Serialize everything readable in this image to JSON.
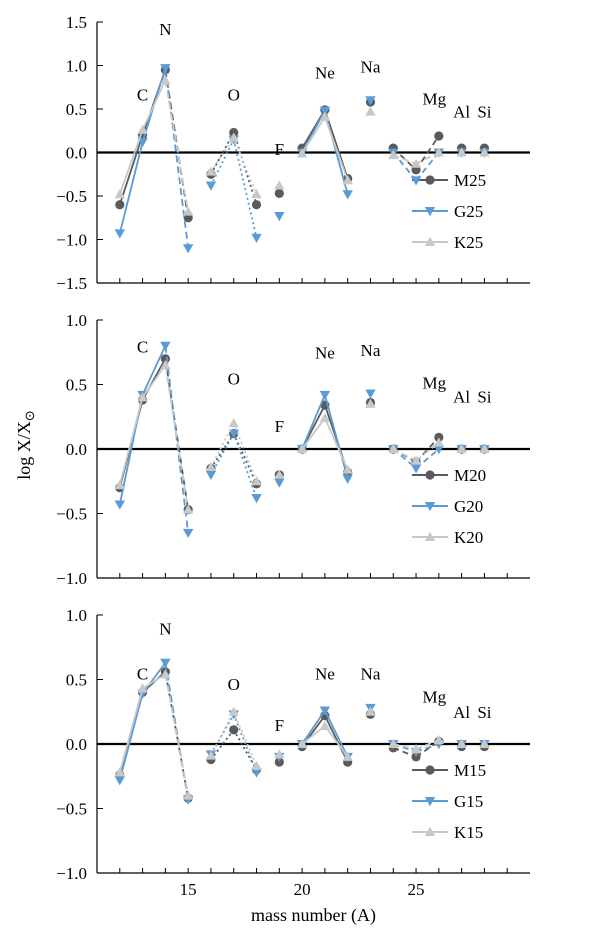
{
  "chart_data": [
    {
      "type": "line",
      "ylim": [
        -1.5,
        1.5
      ],
      "yticks": [
        "1.5",
        "1.0",
        "0.5",
        "0.0",
        "−0.5",
        "−1.0",
        "−1.5"
      ],
      "xlim": [
        11,
        30
      ],
      "element_labels": [
        {
          "text": "C",
          "x": 13,
          "y": 0.6
        },
        {
          "text": "N",
          "x": 14,
          "y": 1.35
        },
        {
          "text": "O",
          "x": 17,
          "y": 0.6
        },
        {
          "text": "F",
          "x": 19,
          "y": -0.03
        },
        {
          "text": "Ne",
          "x": 21,
          "y": 0.85
        },
        {
          "text": "Na",
          "x": 23,
          "y": 0.92
        },
        {
          "text": "Mg",
          "x": 25.8,
          "y": 0.55
        },
        {
          "text": "Al",
          "x": 27,
          "y": 0.4
        },
        {
          "text": "Si",
          "x": 28,
          "y": 0.4
        }
      ],
      "series": [
        {
          "name": "M25",
          "color": "#5a5a5a",
          "marker": "circle",
          "x": [
            12,
            13,
            14,
            15,
            16,
            17,
            18,
            19,
            20,
            21,
            22,
            23,
            24,
            25,
            26,
            27,
            28
          ],
          "y": [
            -0.6,
            0.2,
            0.95,
            -0.75,
            -0.25,
            0.23,
            -0.6,
            -0.47,
            0.05,
            0.49,
            -0.3,
            0.58,
            0.05,
            -0.2,
            0.19,
            0.05,
            0.05
          ]
        },
        {
          "name": "G25",
          "color": "#5b9bd5",
          "marker": "tri-down",
          "x": [
            12,
            13,
            14,
            15,
            16,
            17,
            18,
            19,
            20,
            21,
            22,
            23,
            24,
            25,
            26,
            27,
            28
          ],
          "y": [
            -0.93,
            0.12,
            0.97,
            -1.1,
            -0.38,
            0.15,
            -0.98,
            -0.73,
            0.0,
            0.48,
            -0.48,
            0.6,
            0.0,
            -0.32,
            0.0,
            0.0,
            0.0
          ]
        },
        {
          "name": "K25",
          "color": "#c8c8c8",
          "marker": "tri-up",
          "x": [
            12,
            13,
            14,
            15,
            16,
            17,
            18,
            19,
            20,
            21,
            22,
            23,
            24,
            25,
            26,
            27,
            28
          ],
          "y": [
            -0.48,
            0.26,
            0.83,
            -0.68,
            -0.22,
            0.17,
            -0.48,
            -0.38,
            -0.01,
            0.41,
            -0.32,
            0.47,
            -0.03,
            -0.13,
            0.0,
            0.0,
            0.0
          ]
        }
      ]
    },
    {
      "type": "line",
      "ylim": [
        -1.0,
        1.0
      ],
      "yticks": [
        "1.0",
        "0.5",
        "0.0",
        "−0.5",
        "−1.0"
      ],
      "xlim": [
        11,
        30
      ],
      "element_labels": [
        {
          "text": "C",
          "x": 13,
          "y": 0.75
        },
        {
          "text": "O",
          "x": 17,
          "y": 0.5
        },
        {
          "text": "F",
          "x": 19,
          "y": 0.13
        },
        {
          "text": "Ne",
          "x": 21,
          "y": 0.7
        },
        {
          "text": "Na",
          "x": 23,
          "y": 0.72
        },
        {
          "text": "Mg",
          "x": 25.8,
          "y": 0.47
        },
        {
          "text": "Al",
          "x": 27,
          "y": 0.36
        },
        {
          "text": "Si",
          "x": 28,
          "y": 0.36
        }
      ],
      "series": [
        {
          "name": "M20",
          "color": "#5a5a5a",
          "marker": "circle",
          "x": [
            12,
            13,
            14,
            15,
            16,
            17,
            18,
            19,
            20,
            21,
            22,
            23,
            24,
            25,
            26,
            27,
            28
          ],
          "y": [
            -0.3,
            0.38,
            0.7,
            -0.47,
            -0.15,
            0.12,
            -0.27,
            -0.2,
            0.0,
            0.34,
            -0.18,
            0.36,
            0.0,
            -0.1,
            0.09,
            0.0,
            0.0
          ]
        },
        {
          "name": "G20",
          "color": "#5b9bd5",
          "marker": "tri-down",
          "x": [
            12,
            13,
            14,
            15,
            16,
            17,
            18,
            19,
            20,
            21,
            22,
            23,
            24,
            25,
            26,
            27,
            28
          ],
          "y": [
            -0.43,
            0.42,
            0.8,
            -0.65,
            -0.2,
            0.12,
            -0.38,
            -0.26,
            0.0,
            0.42,
            -0.23,
            0.43,
            0.0,
            -0.15,
            0.0,
            0.0,
            0.0
          ]
        },
        {
          "name": "K20",
          "color": "#c8c8c8",
          "marker": "tri-up",
          "x": [
            12,
            13,
            14,
            15,
            16,
            17,
            18,
            19,
            20,
            21,
            22,
            23,
            24,
            25,
            26,
            27,
            28
          ],
          "y": [
            -0.28,
            0.4,
            0.65,
            -0.47,
            -0.14,
            0.2,
            -0.25,
            -0.2,
            0.0,
            0.24,
            -0.16,
            0.35,
            0.0,
            -0.09,
            0.05,
            0.0,
            0.0
          ]
        }
      ]
    },
    {
      "type": "line",
      "ylim": [
        -1.0,
        1.0
      ],
      "yticks": [
        "1.0",
        "0.5",
        "0.0",
        "−0.5",
        "−1.0"
      ],
      "xlim": [
        11,
        30
      ],
      "xticks": [
        15,
        20,
        25
      ],
      "xlabel": "mass number (A)",
      "element_labels": [
        {
          "text": "C",
          "x": 13,
          "y": 0.5
        },
        {
          "text": "N",
          "x": 14,
          "y": 0.85
        },
        {
          "text": "O",
          "x": 17,
          "y": 0.42
        },
        {
          "text": "F",
          "x": 19,
          "y": 0.1
        },
        {
          "text": "Ne",
          "x": 21,
          "y": 0.5
        },
        {
          "text": "Na",
          "x": 23,
          "y": 0.5
        },
        {
          "text": "Mg",
          "x": 25.8,
          "y": 0.32
        },
        {
          "text": "Al",
          "x": 27,
          "y": 0.2
        },
        {
          "text": "Si",
          "x": 28,
          "y": 0.2
        }
      ],
      "series": [
        {
          "name": "M15",
          "color": "#5a5a5a",
          "marker": "circle",
          "x": [
            12,
            13,
            14,
            15,
            16,
            17,
            18,
            19,
            20,
            21,
            22,
            23,
            24,
            25,
            26,
            27,
            28
          ],
          "y": [
            -0.24,
            0.4,
            0.56,
            -0.42,
            -0.12,
            0.11,
            -0.2,
            -0.14,
            -0.02,
            0.22,
            -0.14,
            0.23,
            -0.03,
            -0.1,
            0.02,
            -0.02,
            -0.02
          ]
        },
        {
          "name": "G15",
          "color": "#5b9bd5",
          "marker": "tri-down",
          "x": [
            12,
            13,
            14,
            15,
            16,
            17,
            18,
            19,
            20,
            21,
            22,
            23,
            24,
            25,
            26,
            27,
            28
          ],
          "y": [
            -0.28,
            0.39,
            0.63,
            -0.43,
            -0.08,
            0.23,
            -0.22,
            -0.1,
            0.0,
            0.26,
            -0.1,
            0.28,
            0.0,
            -0.06,
            0.0,
            0.0,
            0.0
          ]
        },
        {
          "name": "K15",
          "color": "#c8c8c8",
          "marker": "tri-up",
          "x": [
            12,
            13,
            14,
            15,
            16,
            17,
            18,
            19,
            20,
            21,
            22,
            23,
            24,
            25,
            26,
            27,
            28
          ],
          "y": [
            -0.22,
            0.43,
            0.54,
            -0.4,
            -0.09,
            0.25,
            -0.17,
            -0.08,
            0.0,
            0.14,
            -0.1,
            0.25,
            0.0,
            -0.04,
            0.03,
            0.0,
            0.0
          ]
        }
      ]
    }
  ],
  "shared": {
    "ylabel_main": "log X/X",
    "ylabel_sub": "⊙"
  }
}
